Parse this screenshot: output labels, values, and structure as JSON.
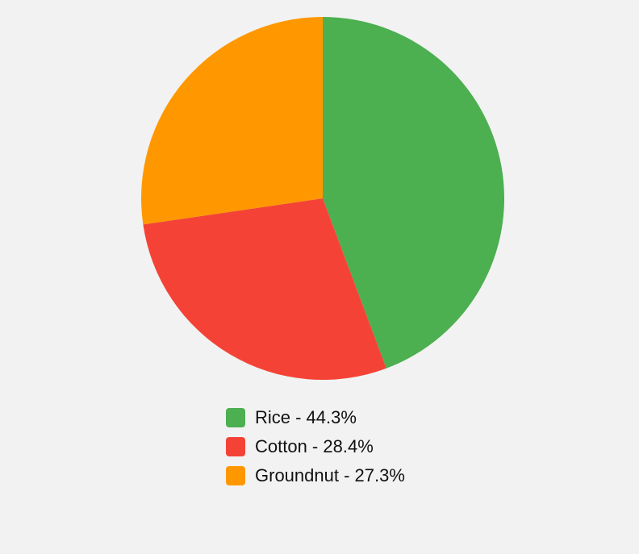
{
  "chart_data": {
    "type": "pie",
    "title": "",
    "slices": [
      {
        "label": "Rice",
        "value": 44.3,
        "display": "Rice - 44.3%",
        "color": "#4caf50"
      },
      {
        "label": "Cotton",
        "value": 28.4,
        "display": "Cotton - 28.4%",
        "color": "#f44336"
      },
      {
        "label": "Groundnut",
        "value": 27.3,
        "display": "Groundnut - 27.3%",
        "color": "#ff9800"
      }
    ],
    "start_angle": "top",
    "direction": "clockwise",
    "legend_position": "bottom"
  }
}
